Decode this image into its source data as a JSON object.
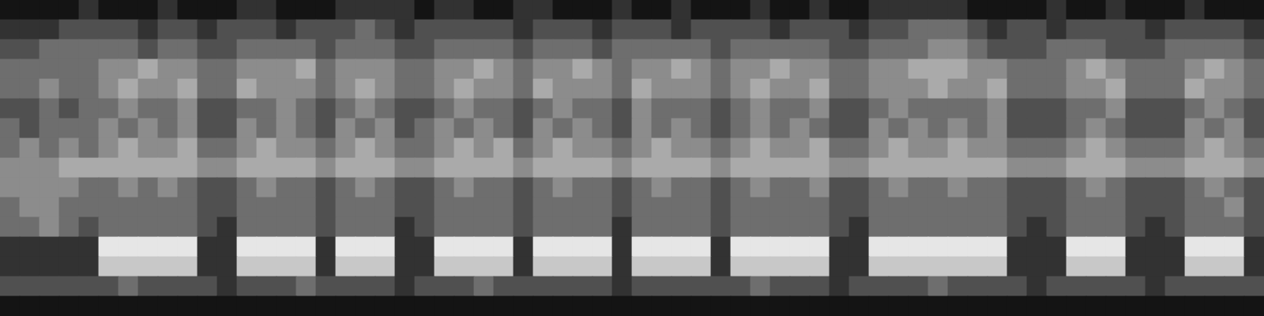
{
  "chart_data": {
    "type": "heatmap",
    "grid": false,
    "tick_labels": false,
    "cells": [
      [
        2,
        2,
        2,
        2,
        3,
        2,
        2,
        2,
        3,
        2,
        2,
        2,
        3,
        3,
        2,
        2,
        2,
        3,
        3,
        3,
        3,
        2,
        3,
        3,
        2,
        2,
        3,
        3,
        2,
        2,
        2,
        3,
        2,
        2,
        3,
        2,
        2,
        2,
        3,
        2,
        2,
        3,
        2,
        2,
        3,
        3,
        3,
        3,
        3,
        2,
        2,
        2,
        2,
        3,
        2,
        2,
        3,
        2,
        2,
        2,
        3,
        2,
        2,
        2
      ],
      [
        3,
        3,
        3,
        4,
        4,
        4,
        4,
        3,
        4,
        4,
        3,
        4,
        4,
        4,
        3,
        4,
        4,
        4,
        5,
        4,
        3,
        4,
        4,
        4,
        4,
        4,
        3,
        4,
        4,
        4,
        3,
        4,
        4,
        4,
        3,
        4,
        4,
        4,
        4,
        3,
        4,
        4,
        4,
        3,
        4,
        4,
        5,
        5,
        5,
        4,
        3,
        4,
        4,
        3,
        4,
        4,
        4,
        4,
        3,
        4,
        4,
        4,
        4,
        3
      ],
      [
        4,
        4,
        5,
        5,
        5,
        5,
        5,
        4,
        5,
        5,
        4,
        4,
        5,
        5,
        5,
        5,
        4,
        5,
        5,
        5,
        4,
        4,
        5,
        5,
        5,
        5,
        4,
        5,
        5,
        5,
        4,
        5,
        5,
        5,
        5,
        5,
        4,
        5,
        5,
        5,
        5,
        5,
        4,
        4,
        5,
        5,
        5,
        6,
        6,
        5,
        4,
        4,
        4,
        5,
        5,
        5,
        4,
        4,
        4,
        5,
        5,
        5,
        5,
        4
      ],
      [
        5,
        5,
        5,
        5,
        5,
        6,
        6,
        7,
        6,
        6,
        5,
        5,
        6,
        6,
        6,
        7,
        5,
        6,
        6,
        6,
        5,
        5,
        6,
        6,
        7,
        6,
        5,
        6,
        6,
        7,
        6,
        5,
        6,
        6,
        7,
        6,
        5,
        6,
        6,
        7,
        6,
        6,
        5,
        5,
        6,
        6,
        7,
        7,
        7,
        6,
        6,
        5,
        5,
        5,
        6,
        7,
        6,
        5,
        5,
        5,
        6,
        7,
        6,
        5
      ],
      [
        5,
        5,
        6,
        5,
        5,
        6,
        7,
        6,
        6,
        7,
        5,
        5,
        7,
        6,
        6,
        6,
        5,
        6,
        7,
        6,
        5,
        5,
        6,
        7,
        6,
        6,
        5,
        7,
        6,
        6,
        6,
        5,
        7,
        6,
        6,
        6,
        5,
        6,
        7,
        6,
        6,
        7,
        5,
        5,
        6,
        6,
        6,
        7,
        6,
        6,
        7,
        5,
        5,
        5,
        6,
        6,
        7,
        5,
        5,
        5,
        7,
        6,
        6,
        5
      ],
      [
        4,
        4,
        5,
        4,
        5,
        5,
        6,
        5,
        5,
        6,
        4,
        4,
        5,
        5,
        6,
        5,
        4,
        5,
        6,
        5,
        4,
        4,
        5,
        6,
        5,
        5,
        4,
        5,
        6,
        5,
        5,
        4,
        6,
        5,
        5,
        5,
        4,
        5,
        6,
        5,
        5,
        6,
        4,
        4,
        5,
        6,
        5,
        5,
        5,
        5,
        6,
        4,
        4,
        4,
        5,
        5,
        6,
        4,
        4,
        4,
        5,
        6,
        5,
        4
      ],
      [
        5,
        4,
        5,
        5,
        5,
        6,
        5,
        6,
        5,
        6,
        4,
        4,
        6,
        5,
        6,
        5,
        4,
        6,
        5,
        6,
        4,
        5,
        6,
        5,
        6,
        5,
        4,
        6,
        5,
        6,
        5,
        4,
        6,
        5,
        6,
        5,
        4,
        5,
        6,
        5,
        6,
        5,
        4,
        4,
        6,
        5,
        6,
        5,
        6,
        5,
        6,
        4,
        4,
        4,
        5,
        6,
        5,
        4,
        4,
        4,
        6,
        5,
        6,
        4
      ],
      [
        5,
        6,
        5,
        6,
        5,
        6,
        7,
        6,
        6,
        7,
        5,
        5,
        6,
        7,
        6,
        6,
        5,
        6,
        7,
        6,
        5,
        5,
        6,
        7,
        6,
        7,
        5,
        6,
        7,
        6,
        6,
        5,
        6,
        7,
        6,
        6,
        5,
        6,
        7,
        6,
        6,
        7,
        5,
        5,
        6,
        7,
        6,
        6,
        7,
        6,
        6,
        5,
        5,
        5,
        6,
        7,
        6,
        5,
        5,
        5,
        6,
        7,
        6,
        5
      ],
      [
        6,
        6,
        6,
        7,
        7,
        7,
        7,
        7,
        7,
        7,
        6,
        6,
        7,
        7,
        7,
        7,
        6,
        7,
        7,
        7,
        6,
        6,
        7,
        7,
        7,
        7,
        6,
        7,
        7,
        7,
        7,
        6,
        7,
        7,
        7,
        7,
        6,
        7,
        7,
        7,
        7,
        7,
        6,
        6,
        7,
        7,
        7,
        7,
        7,
        7,
        7,
        6,
        6,
        6,
        7,
        7,
        7,
        6,
        6,
        6,
        7,
        7,
        7,
        6
      ],
      [
        6,
        6,
        6,
        6,
        5,
        5,
        6,
        5,
        6,
        5,
        4,
        4,
        5,
        6,
        5,
        5,
        4,
        5,
        6,
        5,
        4,
        4,
        5,
        6,
        5,
        5,
        4,
        5,
        6,
        5,
        5,
        4,
        5,
        6,
        5,
        5,
        4,
        5,
        6,
        5,
        5,
        6,
        4,
        4,
        5,
        6,
        5,
        5,
        6,
        5,
        5,
        4,
        4,
        4,
        5,
        6,
        5,
        4,
        4,
        4,
        5,
        6,
        5,
        4
      ],
      [
        5,
        6,
        6,
        5,
        5,
        5,
        5,
        5,
        5,
        5,
        4,
        4,
        5,
        5,
        5,
        5,
        4,
        5,
        5,
        5,
        4,
        4,
        5,
        5,
        5,
        5,
        4,
        5,
        5,
        5,
        5,
        4,
        5,
        5,
        5,
        5,
        4,
        5,
        5,
        5,
        5,
        5,
        4,
        4,
        5,
        5,
        5,
        5,
        5,
        5,
        5,
        4,
        4,
        4,
        5,
        5,
        5,
        4,
        4,
        4,
        5,
        5,
        6,
        4
      ],
      [
        5,
        5,
        6,
        5,
        4,
        5,
        5,
        5,
        5,
        5,
        4,
        3,
        5,
        5,
        5,
        5,
        4,
        5,
        5,
        5,
        3,
        4,
        5,
        5,
        5,
        5,
        4,
        5,
        5,
        5,
        5,
        3,
        5,
        5,
        5,
        5,
        4,
        5,
        5,
        5,
        5,
        5,
        4,
        3,
        5,
        5,
        5,
        5,
        5,
        5,
        5,
        4,
        3,
        4,
        5,
        5,
        5,
        4,
        3,
        4,
        5,
        5,
        5,
        4
      ],
      [
        3,
        3,
        3,
        3,
        3,
        9,
        9,
        9,
        9,
        9,
        3,
        3,
        9,
        9,
        9,
        9,
        3,
        9,
        9,
        9,
        3,
        3,
        9,
        9,
        9,
        9,
        3,
        9,
        9,
        9,
        9,
        3,
        9,
        9,
        9,
        9,
        3,
        9,
        9,
        9,
        9,
        9,
        3,
        3,
        9,
        9,
        9,
        9,
        9,
        9,
        9,
        3,
        3,
        3,
        9,
        9,
        9,
        3,
        3,
        3,
        9,
        9,
        9,
        3
      ],
      [
        3,
        3,
        3,
        3,
        3,
        8,
        8,
        8,
        8,
        8,
        3,
        3,
        8,
        8,
        8,
        8,
        3,
        8,
        8,
        8,
        3,
        3,
        8,
        8,
        8,
        8,
        3,
        8,
        8,
        8,
        8,
        3,
        8,
        8,
        8,
        8,
        3,
        8,
        8,
        8,
        8,
        8,
        3,
        3,
        8,
        8,
        8,
        8,
        8,
        8,
        8,
        3,
        3,
        3,
        8,
        8,
        8,
        3,
        3,
        3,
        8,
        8,
        8,
        3
      ],
      [
        4,
        4,
        4,
        4,
        4,
        4,
        5,
        4,
        4,
        4,
        4,
        3,
        4,
        4,
        4,
        5,
        4,
        4,
        4,
        4,
        3,
        4,
        4,
        4,
        5,
        4,
        4,
        4,
        4,
        4,
        4,
        3,
        4,
        4,
        4,
        4,
        4,
        4,
        5,
        4,
        4,
        4,
        3,
        4,
        4,
        4,
        4,
        5,
        4,
        4,
        4,
        4,
        3,
        4,
        4,
        4,
        4,
        4,
        3,
        4,
        4,
        4,
        4,
        4
      ],
      [
        2,
        2,
        2,
        2,
        2,
        2,
        2,
        2,
        2,
        2,
        2,
        2,
        2,
        2,
        2,
        2,
        2,
        2,
        2,
        2,
        2,
        2,
        2,
        2,
        2,
        2,
        2,
        2,
        2,
        2,
        2,
        2,
        2,
        2,
        2,
        2,
        2,
        2,
        2,
        2,
        2,
        2,
        2,
        2,
        2,
        2,
        2,
        2,
        2,
        2,
        2,
        2,
        2,
        2,
        2,
        2,
        2,
        2,
        2,
        2,
        2,
        2,
        2,
        2
      ]
    ]
  }
}
